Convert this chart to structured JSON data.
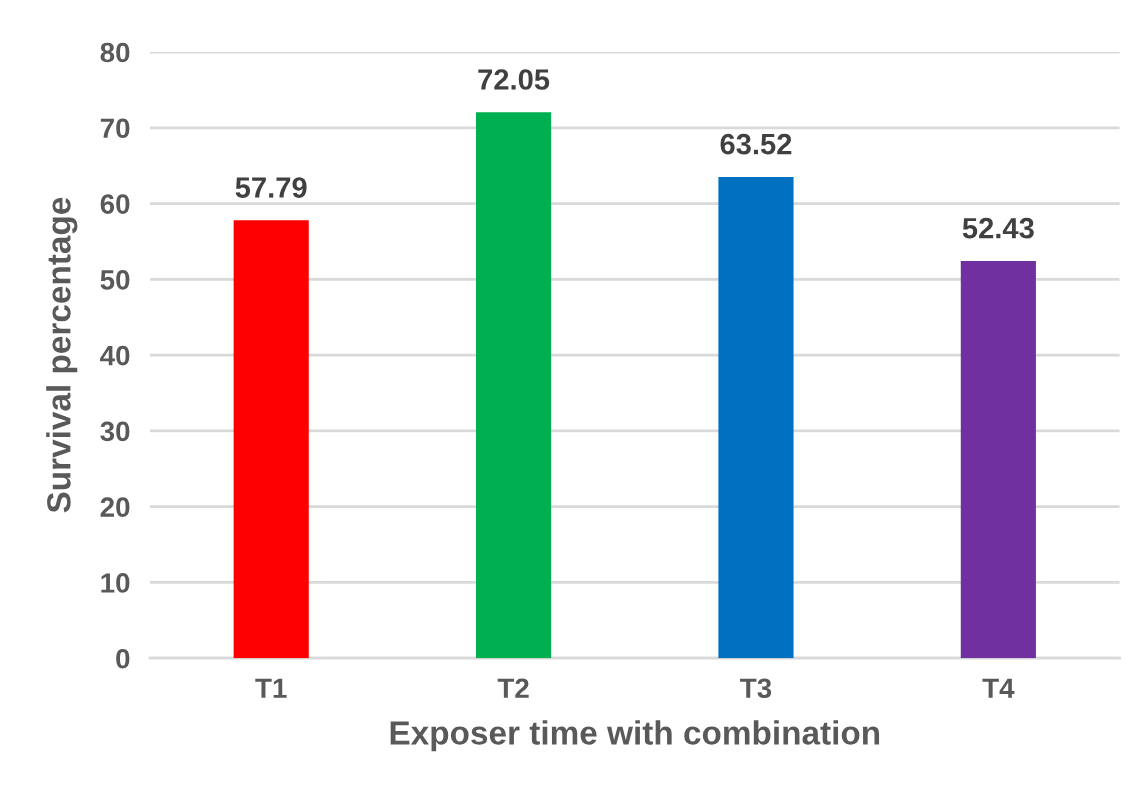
{
  "chart_data": {
    "type": "bar",
    "xlabel": "Exposer time with combination",
    "ylabel": "Survival percentage",
    "categories": [
      "T1",
      "T2",
      "T3",
      "T4"
    ],
    "values": [
      57.79,
      72.05,
      63.52,
      52.43
    ],
    "colors": [
      "#ff0000",
      "#00b050",
      "#0070c0",
      "#7030a0"
    ],
    "ylim": [
      0,
      80
    ],
    "yticks": [
      0,
      10,
      20,
      30,
      40,
      50,
      60,
      70,
      80
    ],
    "grid": "y",
    "data_labels": true
  }
}
